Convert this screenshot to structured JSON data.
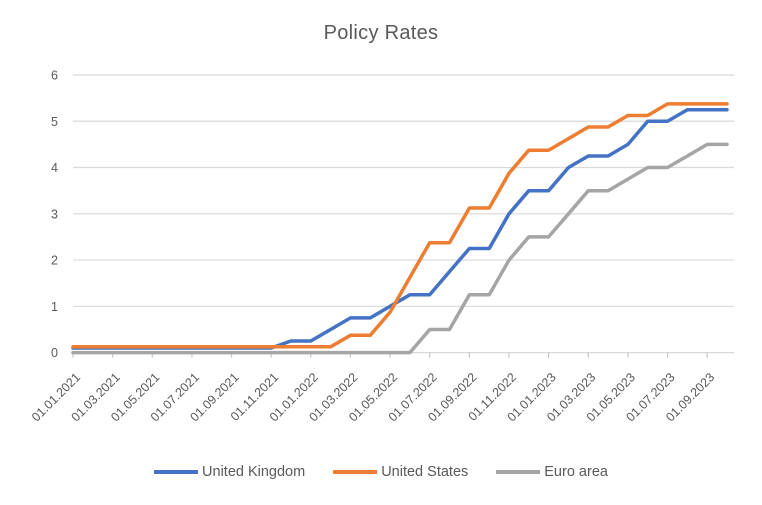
{
  "chart_data": {
    "type": "line",
    "title": "Policy Rates",
    "xlabel": "",
    "ylabel": "",
    "ylim": [
      0,
      6
    ],
    "y_ticks": [
      0,
      1,
      2,
      3,
      4,
      5,
      6
    ],
    "grid": "horizontal",
    "legend_position": "bottom",
    "text_color": "#595959",
    "grid_color": "#D9D9D9",
    "tick_color": "#C6C6C6",
    "x_tick_labels": [
      "01.01.2021",
      "01.03.2021",
      "01.05.2021",
      "01.07.2021",
      "01.09.2021",
      "01.11.2021",
      "01.01.2022",
      "01.03.2022",
      "01.05.2022",
      "01.07.2022",
      "01.09.2022",
      "01.11.2022",
      "01.01.2023",
      "01.03.2023",
      "01.05.2023",
      "01.07.2023",
      "01.09.2023"
    ],
    "categories": [
      "01.01.2021",
      "01.02.2021",
      "01.03.2021",
      "01.04.2021",
      "01.05.2021",
      "01.06.2021",
      "01.07.2021",
      "01.08.2021",
      "01.09.2021",
      "01.10.2021",
      "01.11.2021",
      "01.12.2021",
      "01.01.2022",
      "01.02.2022",
      "01.03.2022",
      "01.04.2022",
      "01.05.2022",
      "01.06.2022",
      "01.07.2022",
      "01.08.2022",
      "01.09.2022",
      "01.10.2022",
      "01.11.2022",
      "01.12.2022",
      "01.01.2023",
      "01.02.2023",
      "01.03.2023",
      "01.04.2023",
      "01.05.2023",
      "01.06.2023",
      "01.07.2023",
      "01.08.2023",
      "01.09.2023",
      "01.10.2023"
    ],
    "series": [
      {
        "name": "United Kingdom",
        "color": "#4472C4",
        "values": [
          0.1,
          0.1,
          0.1,
          0.1,
          0.1,
          0.1,
          0.1,
          0.1,
          0.1,
          0.1,
          0.1,
          0.25,
          0.25,
          0.5,
          0.75,
          0.75,
          1.0,
          1.25,
          1.25,
          1.75,
          2.25,
          2.25,
          3.0,
          3.5,
          3.5,
          4.0,
          4.25,
          4.25,
          4.5,
          5.0,
          5.0,
          5.25,
          5.25,
          5.25
        ]
      },
      {
        "name": "United States",
        "color": "#ED7D31",
        "values": [
          0.125,
          0.125,
          0.125,
          0.125,
          0.125,
          0.125,
          0.125,
          0.125,
          0.125,
          0.125,
          0.125,
          0.125,
          0.125,
          0.125,
          0.375,
          0.375,
          0.875,
          1.625,
          2.375,
          2.375,
          3.125,
          3.125,
          3.875,
          4.375,
          4.375,
          4.625,
          4.875,
          4.875,
          5.125,
          5.125,
          5.375,
          5.375,
          5.375,
          5.375
        ]
      },
      {
        "name": "Euro area",
        "color": "#A5A5A5",
        "values": [
          0,
          0,
          0,
          0,
          0,
          0,
          0,
          0,
          0,
          0,
          0,
          0,
          0,
          0,
          0,
          0,
          0,
          0,
          0.5,
          0.5,
          1.25,
          1.25,
          2.0,
          2.5,
          2.5,
          3.0,
          3.5,
          3.5,
          3.75,
          4.0,
          4.0,
          4.25,
          4.5,
          4.5
        ]
      }
    ]
  }
}
